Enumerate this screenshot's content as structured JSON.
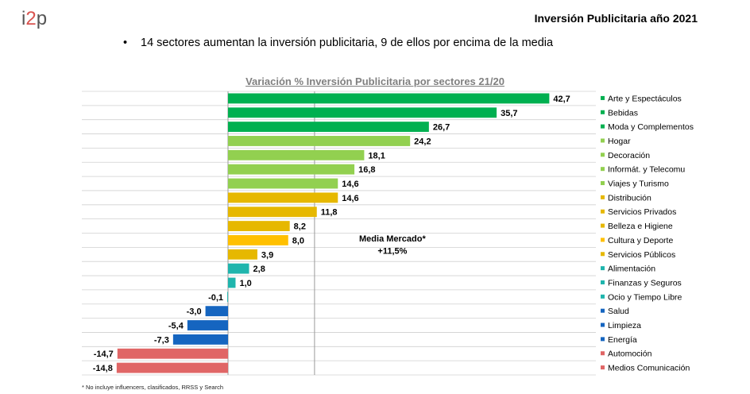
{
  "header": {
    "logo_main": "i",
    "logo_accent": "2",
    "logo_tail": "p",
    "title": "Inversión Publicitaria año 2021"
  },
  "bullet": "14 sectores aumentan la inversión publicitaria, 9 de ellos por encima de la media",
  "footnote": "* No incluye influencers, clasificados, RRSS y Search",
  "chart_data": {
    "type": "bar",
    "orientation": "horizontal",
    "title": "Variación % Inversión Publicitaria por sectores 21/20",
    "categories": [
      "Arte y Espectáculos",
      "Bebidas",
      "Moda y Complementos",
      "Hogar",
      "Decoración",
      "Informát. y Telecomu",
      "Viajes y Turismo",
      "Distribución",
      "Servicios Privados",
      "Belleza e Higiene",
      "Cultura y Deporte",
      "Servicios Públicos",
      "Alimentación",
      "Finanzas y Seguros",
      "Ocio y Tiempo Libre",
      "Salud",
      "Limpieza",
      "Energía",
      "Automoción",
      "Medios Comunicación"
    ],
    "values": [
      42.7,
      35.7,
      26.7,
      24.2,
      18.1,
      16.8,
      14.6,
      14.6,
      11.8,
      8.2,
      8.0,
      3.9,
      2.8,
      1.0,
      -0.1,
      -3.0,
      -5.4,
      -7.3,
      -14.7,
      -14.8
    ],
    "labels": [
      "42,7",
      "35,7",
      "26,7",
      "24,2",
      "18,1",
      "16,8",
      "14,6",
      "14,6",
      "11,8",
      "8,2",
      "8,0",
      "3,9",
      "2,8",
      "1,0",
      "-0,1",
      "-3,0",
      "-5,4",
      "-7,3",
      "-14,7",
      "-14,8"
    ],
    "colors": [
      "#00b050",
      "#00b050",
      "#00b050",
      "#92d050",
      "#92d050",
      "#92d050",
      "#92d050",
      "#e6b800",
      "#e6b800",
      "#e6b800",
      "#ffc000",
      "#e6b800",
      "#1fb5ad",
      "#1fb5ad",
      "#1fb5ad",
      "#1565c0",
      "#1565c0",
      "#1565c0",
      "#e06666",
      "#e06666"
    ],
    "reference_line": {
      "value": 11.5,
      "label_line1": "Media Mercado*",
      "label_line2": "+11,5%"
    },
    "xlim": [
      -15,
      43
    ],
    "legend_placement": "right",
    "grid": "horizontal"
  }
}
